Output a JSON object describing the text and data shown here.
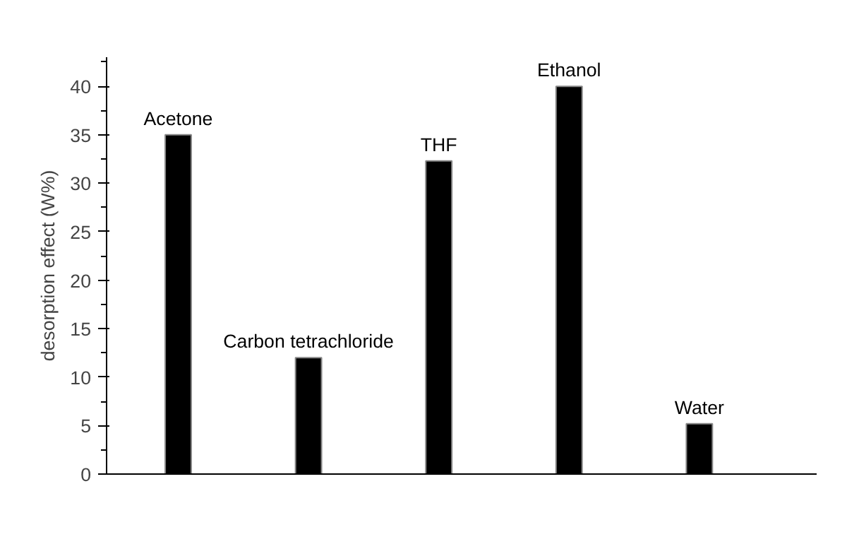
{
  "chart_data": {
    "type": "bar",
    "ylabel": "desorption effect (W%)",
    "categories": [
      "Acetone",
      "Carbon tetrachloride",
      "THF",
      "Ethanol",
      "Water"
    ],
    "values": [
      35,
      12,
      32.3,
      40,
      5.2
    ],
    "color": "#000000",
    "ylim": [
      0,
      43
    ],
    "yticks": [
      0,
      5,
      10,
      15,
      20,
      25,
      30,
      35,
      40
    ],
    "grid": false,
    "tick_labels": "y"
  }
}
